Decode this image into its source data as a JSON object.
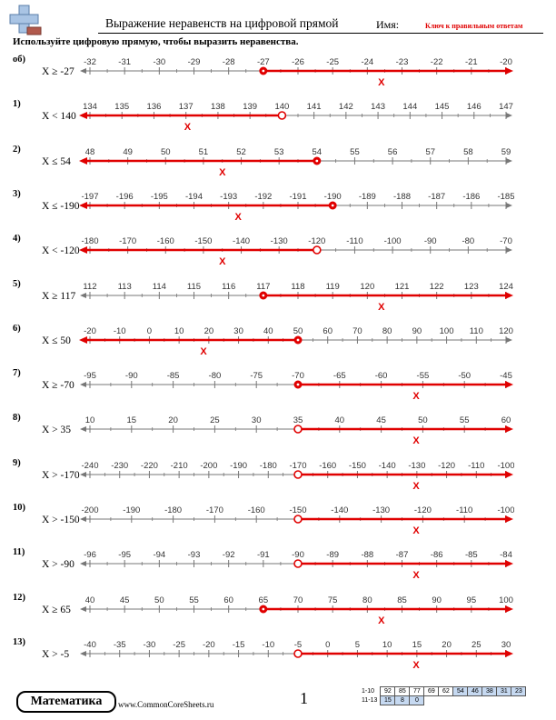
{
  "header": {
    "title": "Выражение неравенств на цифровой прямой",
    "name_label": "Имя:",
    "answer_key": "Ключ к правильным ответам"
  },
  "instructions": "Используйте цифровую прямую, чтобы выразить неравенства.",
  "colors": {
    "accent": "#e00000",
    "line": "#777777",
    "highlight": "#c6d9f1"
  },
  "problems": [
    {
      "num": "об)",
      "inequality": "X ≥ -27",
      "ticks": [
        "-32",
        "-31",
        "-30",
        "-29",
        "-28",
        "-27",
        "-26",
        "-25",
        "-24",
        "-23",
        "-22",
        "-21",
        "-20"
      ],
      "point_index": 5,
      "closed": true,
      "direction": "right"
    },
    {
      "num": "1)",
      "inequality": "X < 140",
      "ticks": [
        "134",
        "135",
        "136",
        "137",
        "138",
        "139",
        "140",
        "141",
        "142",
        "143",
        "144",
        "145",
        "146",
        "147"
      ],
      "point_index": 6,
      "closed": false,
      "direction": "left"
    },
    {
      "num": "2)",
      "inequality": "X ≤ 54",
      "ticks": [
        "48",
        "49",
        "50",
        "51",
        "52",
        "53",
        "54",
        "55",
        "56",
        "57",
        "58",
        "59"
      ],
      "point_index": 6,
      "closed": true,
      "direction": "left"
    },
    {
      "num": "3)",
      "inequality": "X ≤ -190",
      "ticks": [
        "-197",
        "-196",
        "-195",
        "-194",
        "-193",
        "-192",
        "-191",
        "-190",
        "-189",
        "-188",
        "-187",
        "-186",
        "-185"
      ],
      "point_index": 7,
      "closed": true,
      "direction": "left"
    },
    {
      "num": "4)",
      "inequality": "X < -120",
      "ticks": [
        "-180",
        "-170",
        "-160",
        "-150",
        "-140",
        "-130",
        "-120",
        "-110",
        "-100",
        "-90",
        "-80",
        "-70"
      ],
      "point_index": 6,
      "closed": false,
      "direction": "left"
    },
    {
      "num": "5)",
      "inequality": "X ≥ 117",
      "ticks": [
        "112",
        "113",
        "114",
        "115",
        "116",
        "117",
        "118",
        "119",
        "120",
        "121",
        "122",
        "123",
        "124"
      ],
      "point_index": 5,
      "closed": true,
      "direction": "right"
    },
    {
      "num": "6)",
      "inequality": "X ≤ 50",
      "ticks": [
        "-20",
        "-10",
        "0",
        "10",
        "20",
        "30",
        "40",
        "50",
        "60",
        "70",
        "80",
        "90",
        "100",
        "110",
        "120"
      ],
      "point_index": 7,
      "closed": true,
      "direction": "left"
    },
    {
      "num": "7)",
      "inequality": "X ≥ -70",
      "ticks": [
        "-95",
        "-90",
        "-85",
        "-80",
        "-75",
        "-70",
        "-65",
        "-60",
        "-55",
        "-50",
        "-45"
      ],
      "point_index": 5,
      "closed": true,
      "direction": "right"
    },
    {
      "num": "8)",
      "inequality": "X > 35",
      "ticks": [
        "10",
        "15",
        "20",
        "25",
        "30",
        "35",
        "40",
        "45",
        "50",
        "55",
        "60"
      ],
      "point_index": 5,
      "closed": false,
      "direction": "right"
    },
    {
      "num": "9)",
      "inequality": "X > -170",
      "ticks": [
        "-240",
        "-230",
        "-220",
        "-210",
        "-200",
        "-190",
        "-180",
        "-170",
        "-160",
        "-150",
        "-140",
        "-130",
        "-120",
        "-110",
        "-100"
      ],
      "point_index": 7,
      "closed": false,
      "direction": "right"
    },
    {
      "num": "10)",
      "inequality": "X > -150",
      "ticks": [
        "-200",
        "-190",
        "-180",
        "-170",
        "-160",
        "-150",
        "-140",
        "-130",
        "-120",
        "-110",
        "-100"
      ],
      "point_index": 5,
      "closed": false,
      "direction": "right"
    },
    {
      "num": "11)",
      "inequality": "X > -90",
      "ticks": [
        "-96",
        "-95",
        "-94",
        "-93",
        "-92",
        "-91",
        "-90",
        "-89",
        "-88",
        "-87",
        "-86",
        "-85",
        "-84"
      ],
      "point_index": 6,
      "closed": false,
      "direction": "right"
    },
    {
      "num": "12)",
      "inequality": "X ≥ 65",
      "ticks": [
        "40",
        "45",
        "50",
        "55",
        "60",
        "65",
        "70",
        "75",
        "80",
        "85",
        "90",
        "95",
        "100"
      ],
      "point_index": 5,
      "closed": true,
      "direction": "right"
    },
    {
      "num": "13)",
      "inequality": "X > -5",
      "ticks": [
        "-40",
        "-35",
        "-30",
        "-25",
        "-20",
        "-15",
        "-10",
        "-5",
        "0",
        "5",
        "10",
        "15",
        "20",
        "25",
        "30"
      ],
      "point_index": 7,
      "closed": false,
      "direction": "right"
    }
  ],
  "x_mark": "X",
  "footer": {
    "brand": "Математика",
    "site": "www.CommonCoreSheets.ru",
    "page": "1",
    "score_rows": [
      {
        "label": "1-10",
        "cells": [
          "92",
          "85",
          "77",
          "69",
          "62",
          "54",
          "46",
          "38",
          "31",
          "23"
        ],
        "highlight_from": 5
      },
      {
        "label": "11-13",
        "cells": [
          "15",
          "8",
          "0"
        ],
        "highlight_from": 0
      }
    ]
  }
}
